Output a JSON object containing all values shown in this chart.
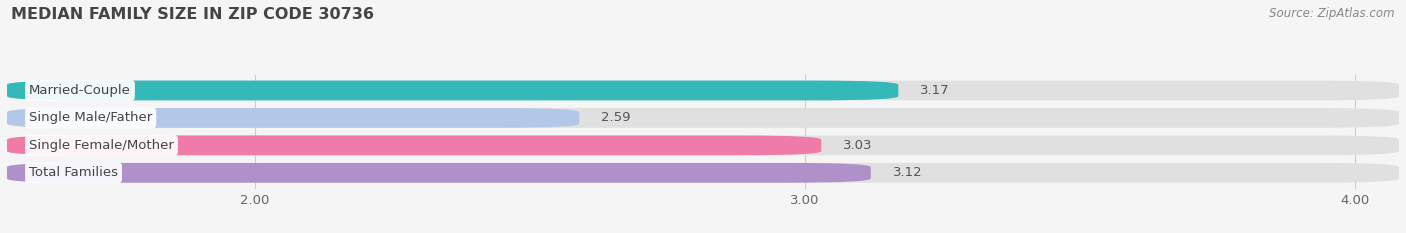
{
  "title": "MEDIAN FAMILY SIZE IN ZIP CODE 30736",
  "source": "Source: ZipAtlas.com",
  "categories": [
    "Married-Couple",
    "Single Male/Father",
    "Single Female/Mother",
    "Total Families"
  ],
  "values": [
    3.17,
    2.59,
    3.03,
    3.12
  ],
  "bar_colors": [
    "#35b8b8",
    "#b3c8e8",
    "#f07aa8",
    "#b090c8"
  ],
  "xlim_left": 1.55,
  "xlim_right": 4.08,
  "xticks": [
    2.0,
    3.0,
    4.0
  ],
  "xtick_labels": [
    "2.00",
    "3.00",
    "4.00"
  ],
  "background_color": "#f5f5f5",
  "bar_bg_color": "#e0e0e0",
  "bar_height": 0.72,
  "bar_gap": 0.28,
  "title_fontsize": 11.5,
  "label_fontsize": 9.5,
  "value_fontsize": 9.5,
  "source_fontsize": 8.5
}
